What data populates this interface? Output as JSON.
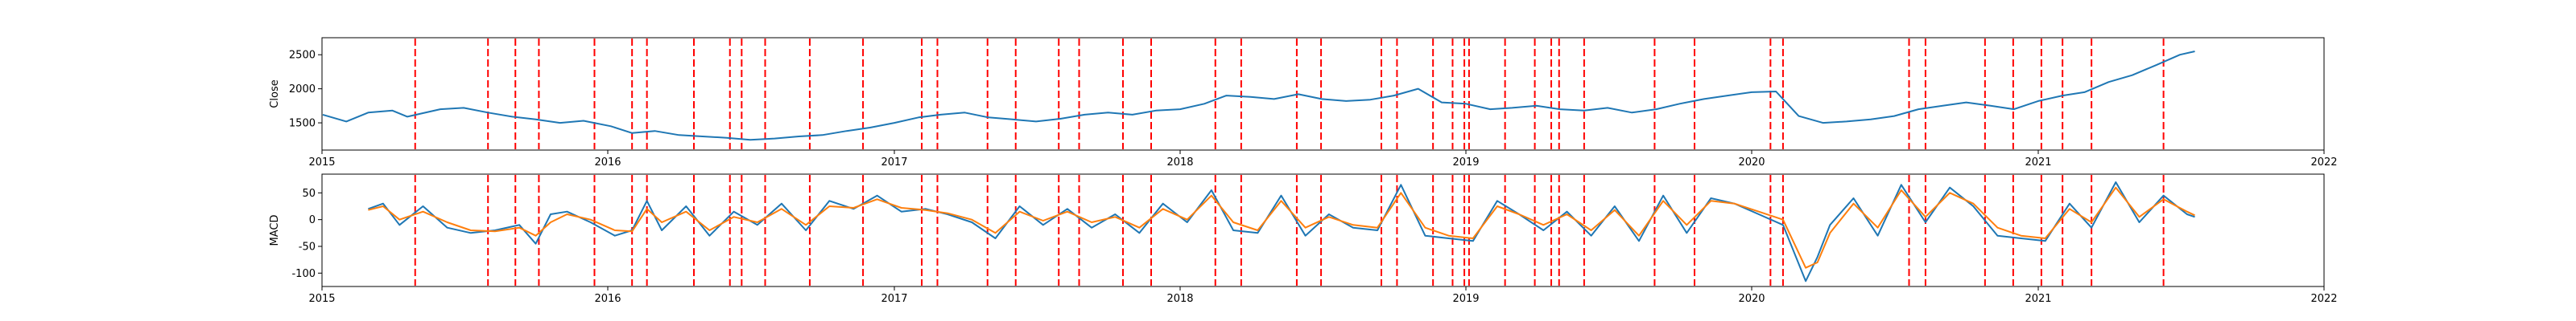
{
  "colors": {
    "close_line": "#1f77b4",
    "macd_line": "#1f77b4",
    "signal_line": "#ff7f0e",
    "marker_line": "#ff0000",
    "axes": "#000000"
  },
  "chart_data": [
    {
      "type": "line",
      "ylabel": "Close",
      "xlabel": "",
      "x_ticks": [
        "2015",
        "2016",
        "2017",
        "2018",
        "2019",
        "2020",
        "2021",
        "2022"
      ],
      "y_ticks": [
        1500,
        2000,
        2500
      ],
      "xlim": [
        "2015-01-01",
        "2022-01-01"
      ],
      "ylim": [
        1100,
        2750
      ],
      "grid": false,
      "series": [
        {
          "x": [
            "2015-01-02",
            "2015-02-01",
            "2015-03-01",
            "2015-04-01",
            "2015-04-20",
            "2015-06-01",
            "2015-07-01",
            "2015-08-01",
            "2015-09-01",
            "2015-10-01",
            "2015-11-01",
            "2015-12-01",
            "2016-01-05",
            "2016-02-01",
            "2016-03-01",
            "2016-04-01",
            "2016-05-01",
            "2016-06-01",
            "2016-07-01",
            "2016-08-01",
            "2016-09-01",
            "2016-10-01",
            "2016-11-01",
            "2016-12-01",
            "2017-01-01",
            "2017-02-01",
            "2017-03-01",
            "2017-04-01",
            "2017-05-01",
            "2017-06-01",
            "2017-07-01",
            "2017-08-01",
            "2017-09-01",
            "2017-10-01",
            "2017-11-01",
            "2017-12-01",
            "2018-01-01",
            "2018-02-01",
            "2018-03-01",
            "2018-04-01",
            "2018-05-01",
            "2018-06-01",
            "2018-07-01",
            "2018-08-01",
            "2018-09-01",
            "2018-10-01",
            "2018-11-01",
            "2018-12-01",
            "2019-01-01",
            "2019-02-01",
            "2019-03-01",
            "2019-04-01",
            "2019-05-01",
            "2019-06-01",
            "2019-07-01",
            "2019-08-01",
            "2019-09-01",
            "2019-10-01",
            "2019-11-01",
            "2019-12-01",
            "2020-01-01",
            "2020-02-01",
            "2020-03-01",
            "2020-04-01",
            "2020-05-01",
            "2020-06-01",
            "2020-07-01",
            "2020-08-01",
            "2020-09-01",
            "2020-10-01",
            "2020-11-01",
            "2020-12-01",
            "2021-01-01",
            "2021-02-01",
            "2021-03-01",
            "2021-04-01",
            "2021-05-01",
            "2021-06-01",
            "2021-07-01",
            "2021-07-20"
          ],
          "values": [
            1620,
            1520,
            1650,
            1680,
            1590,
            1700,
            1720,
            1650,
            1590,
            1550,
            1500,
            1530,
            1450,
            1350,
            1380,
            1320,
            1300,
            1280,
            1250,
            1270,
            1300,
            1320,
            1380,
            1430,
            1500,
            1580,
            1620,
            1650,
            1580,
            1550,
            1520,
            1560,
            1620,
            1650,
            1620,
            1680,
            1700,
            1780,
            1900,
            1880,
            1850,
            1920,
            1850,
            1820,
            1840,
            1900,
            2000,
            1800,
            1780,
            1700,
            1720,
            1750,
            1700,
            1680,
            1720,
            1650,
            1700,
            1780,
            1850,
            1900,
            1950,
            1960,
            1600,
            1500,
            1520,
            1550,
            1600,
            1700,
            1750,
            1800,
            1750,
            1700,
            1820,
            1900,
            1950,
            2100,
            2200,
            2350,
            2500,
            2550
          ]
        }
      ]
    },
    {
      "type": "line",
      "ylabel": "MACD",
      "xlabel": "",
      "x_ticks": [
        "2015",
        "2016",
        "2017",
        "2018",
        "2019",
        "2020",
        "2021",
        "2022"
      ],
      "y_ticks": [
        -100,
        -50,
        0,
        50
      ],
      "xlim": [
        "2015-01-01",
        "2022-01-01"
      ],
      "ylim": [
        -125,
        85
      ],
      "grid": false,
      "series": [
        {
          "x": [
            "2015-03-01",
            "2015-03-20",
            "2015-04-10",
            "2015-05-10",
            "2015-06-10",
            "2015-07-10",
            "2015-08-10",
            "2015-09-10",
            "2015-10-01",
            "2015-10-20",
            "2015-11-10",
            "2015-12-10",
            "2016-01-10",
            "2016-02-01",
            "2016-02-20",
            "2016-03-10",
            "2016-04-10",
            "2016-05-10",
            "2016-06-10",
            "2016-07-10",
            "2016-08-10",
            "2016-09-10",
            "2016-10-10",
            "2016-11-10",
            "2016-12-10",
            "2017-01-10",
            "2017-02-10",
            "2017-03-10",
            "2017-04-10",
            "2017-05-10",
            "2017-06-10",
            "2017-07-10",
            "2017-08-10",
            "2017-09-10",
            "2017-10-10",
            "2017-11-10",
            "2017-12-10",
            "2018-01-10",
            "2018-02-10",
            "2018-03-10",
            "2018-04-10",
            "2018-05-10",
            "2018-06-10",
            "2018-07-10",
            "2018-08-10",
            "2018-09-10",
            "2018-10-10",
            "2018-11-10",
            "2018-12-10",
            "2019-01-10",
            "2019-02-10",
            "2019-03-10",
            "2019-04-10",
            "2019-05-10",
            "2019-06-10",
            "2019-07-10",
            "2019-08-10",
            "2019-09-10",
            "2019-10-10",
            "2019-11-10",
            "2019-12-10",
            "2020-01-10",
            "2020-02-10",
            "2020-03-10",
            "2020-03-25",
            "2020-04-10",
            "2020-05-10",
            "2020-06-10",
            "2020-07-10",
            "2020-08-10",
            "2020-09-10",
            "2020-10-10",
            "2020-11-10",
            "2020-12-10",
            "2021-01-10",
            "2021-02-10",
            "2021-03-10",
            "2021-04-10",
            "2021-05-10",
            "2021-06-10",
            "2021-07-10",
            "2021-07-20"
          ],
          "values": [
            20,
            30,
            -10,
            25,
            -15,
            -25,
            -20,
            -10,
            -45,
            10,
            15,
            -5,
            -30,
            -20,
            35,
            -20,
            25,
            -30,
            15,
            -10,
            30,
            -20,
            35,
            20,
            45,
            15,
            20,
            10,
            -5,
            -35,
            25,
            -10,
            20,
            -15,
            10,
            -25,
            30,
            -5,
            55,
            -20,
            -25,
            45,
            -30,
            10,
            -15,
            -20,
            65,
            -30,
            -35,
            -40,
            35,
            10,
            -20,
            15,
            -30,
            25,
            -40,
            45,
            -25,
            40,
            30,
            10,
            -10,
            -115,
            -70,
            -10,
            40,
            -30,
            65,
            -5,
            60,
            25,
            -30,
            -35,
            -40,
            30,
            -15,
            70,
            -5,
            45,
            10,
            5
          ]
        },
        {
          "x": [
            "2015-03-01",
            "2015-03-20",
            "2015-04-10",
            "2015-05-10",
            "2015-06-10",
            "2015-07-10",
            "2015-08-10",
            "2015-09-10",
            "2015-10-01",
            "2015-10-20",
            "2015-11-10",
            "2015-12-10",
            "2016-01-10",
            "2016-02-01",
            "2016-02-20",
            "2016-03-10",
            "2016-04-10",
            "2016-05-10",
            "2016-06-10",
            "2016-07-10",
            "2016-08-10",
            "2016-09-10",
            "2016-10-10",
            "2016-11-10",
            "2016-12-10",
            "2017-01-10",
            "2017-02-10",
            "2017-03-10",
            "2017-04-10",
            "2017-05-10",
            "2017-06-10",
            "2017-07-10",
            "2017-08-10",
            "2017-09-10",
            "2017-10-10",
            "2017-11-10",
            "2017-12-10",
            "2018-01-10",
            "2018-02-10",
            "2018-03-10",
            "2018-04-10",
            "2018-05-10",
            "2018-06-10",
            "2018-07-10",
            "2018-08-10",
            "2018-09-10",
            "2018-10-10",
            "2018-11-10",
            "2018-12-10",
            "2019-01-10",
            "2019-02-10",
            "2019-03-10",
            "2019-04-10",
            "2019-05-10",
            "2019-06-10",
            "2019-07-10",
            "2019-08-10",
            "2019-09-10",
            "2019-10-10",
            "2019-11-10",
            "2019-12-10",
            "2020-01-10",
            "2020-02-10",
            "2020-03-10",
            "2020-03-25",
            "2020-04-10",
            "2020-05-10",
            "2020-06-10",
            "2020-07-10",
            "2020-08-10",
            "2020-09-10",
            "2020-10-10",
            "2020-11-10",
            "2020-12-10",
            "2021-01-10",
            "2021-02-10",
            "2021-03-10",
            "2021-04-10",
            "2021-05-10",
            "2021-06-10",
            "2021-07-10",
            "2021-07-20"
          ],
          "values": [
            18,
            25,
            0,
            15,
            -5,
            -20,
            -22,
            -15,
            -30,
            -5,
            10,
            0,
            -20,
            -22,
            20,
            -5,
            15,
            -20,
            5,
            -5,
            20,
            -10,
            25,
            22,
            38,
            22,
            18,
            12,
            0,
            -25,
            15,
            -2,
            15,
            -5,
            5,
            -15,
            20,
            0,
            45,
            -5,
            -20,
            35,
            -15,
            5,
            -10,
            -15,
            50,
            -15,
            -30,
            -35,
            25,
            10,
            -10,
            10,
            -20,
            18,
            -30,
            35,
            -10,
            35,
            30,
            15,
            0,
            -90,
            -80,
            -25,
            30,
            -15,
            55,
            5,
            50,
            30,
            -15,
            -30,
            -35,
            20,
            -5,
            60,
            5,
            38,
            15,
            8
          ]
        }
      ]
    }
  ],
  "event_markers": [
    "2015-04-30",
    "2015-08-01",
    "2015-09-05",
    "2015-10-05",
    "2015-12-15",
    "2016-02-01",
    "2016-02-20",
    "2016-04-20",
    "2016-06-05",
    "2016-06-20",
    "2016-07-20",
    "2016-09-15",
    "2016-11-22",
    "2017-02-05",
    "2017-02-25",
    "2017-04-30",
    "2017-06-05",
    "2017-07-30",
    "2017-08-25",
    "2017-10-20",
    "2017-11-25",
    "2018-02-15",
    "2018-03-20",
    "2018-05-30",
    "2018-06-30",
    "2018-09-15",
    "2018-10-05",
    "2018-11-20",
    "2018-12-15",
    "2018-12-30",
    "2019-01-05",
    "2019-02-20",
    "2019-03-30",
    "2019-04-20",
    "2019-04-30",
    "2019-06-01",
    "2019-08-30",
    "2019-10-20",
    "2020-01-25",
    "2020-02-10",
    "2020-07-20",
    "2020-08-10",
    "2020-10-25",
    "2020-11-30",
    "2021-01-05",
    "2021-02-01",
    "2021-03-10",
    "2021-06-10"
  ]
}
